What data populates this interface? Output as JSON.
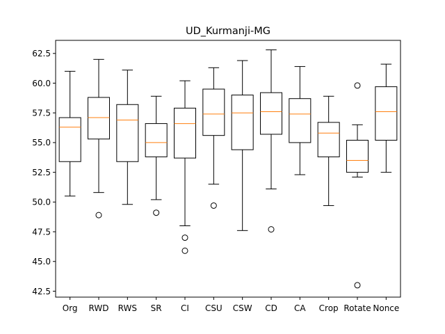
{
  "chart_data": {
    "type": "boxplot",
    "title": "UD_Kurmanji-MG",
    "xlabel": "",
    "ylabel": "",
    "ylim": [
      42.0,
      63.6
    ],
    "yticks": [
      42.5,
      45.0,
      47.5,
      50.0,
      52.5,
      55.0,
      57.5,
      60.0,
      62.5
    ],
    "ytick_labels": [
      "42.5",
      "45.0",
      "47.5",
      "50.0",
      "52.5",
      "55.0",
      "57.5",
      "60.0",
      "62.5"
    ],
    "grid": false,
    "colors": {
      "box": "#000000",
      "median": "#ff7f0e"
    },
    "categories": [
      "Org",
      "RWD",
      "RWS",
      "SR",
      "CI",
      "CSU",
      "CSW",
      "CD",
      "CA",
      "Crop",
      "Rotate",
      "Nonce"
    ],
    "boxes": [
      {
        "label": "Org",
        "whisker_low": 50.5,
        "q1": 53.4,
        "median": 56.3,
        "q3": 57.1,
        "whisker_high": 61.0,
        "outliers": []
      },
      {
        "label": "RWD",
        "whisker_low": 50.8,
        "q1": 55.3,
        "median": 57.1,
        "q3": 58.8,
        "whisker_high": 62.0,
        "outliers": [
          48.9
        ]
      },
      {
        "label": "RWS",
        "whisker_low": 49.8,
        "q1": 53.4,
        "median": 56.9,
        "q3": 58.2,
        "whisker_high": 61.1,
        "outliers": []
      },
      {
        "label": "SR",
        "whisker_low": 50.2,
        "q1": 53.8,
        "median": 55.0,
        "q3": 56.6,
        "whisker_high": 58.9,
        "outliers": [
          49.1
        ]
      },
      {
        "label": "CI",
        "whisker_low": 48.0,
        "q1": 53.7,
        "median": 56.6,
        "q3": 57.9,
        "whisker_high": 60.2,
        "outliers": [
          47.0,
          45.9
        ]
      },
      {
        "label": "CSU",
        "whisker_low": 51.5,
        "q1": 55.6,
        "median": 57.4,
        "q3": 59.5,
        "whisker_high": 61.3,
        "outliers": [
          49.7
        ]
      },
      {
        "label": "CSW",
        "whisker_low": 47.6,
        "q1": 54.4,
        "median": 57.5,
        "q3": 59.0,
        "whisker_high": 61.9,
        "outliers": []
      },
      {
        "label": "CD",
        "whisker_low": 51.1,
        "q1": 55.7,
        "median": 57.6,
        "q3": 59.2,
        "whisker_high": 62.8,
        "outliers": [
          47.7
        ]
      },
      {
        "label": "CA",
        "whisker_low": 52.3,
        "q1": 55.0,
        "median": 57.4,
        "q3": 58.7,
        "whisker_high": 61.4,
        "outliers": []
      },
      {
        "label": "Crop",
        "whisker_low": 49.7,
        "q1": 53.8,
        "median": 55.8,
        "q3": 56.7,
        "whisker_high": 58.9,
        "outliers": []
      },
      {
        "label": "Rotate",
        "whisker_low": 52.1,
        "q1": 52.5,
        "median": 53.5,
        "q3": 55.2,
        "whisker_high": 56.5,
        "outliers": [
          59.8,
          43.0
        ]
      },
      {
        "label": "Nonce",
        "whisker_low": 52.5,
        "q1": 55.2,
        "median": 57.6,
        "q3": 59.7,
        "whisker_high": 61.6,
        "outliers": []
      }
    ]
  }
}
